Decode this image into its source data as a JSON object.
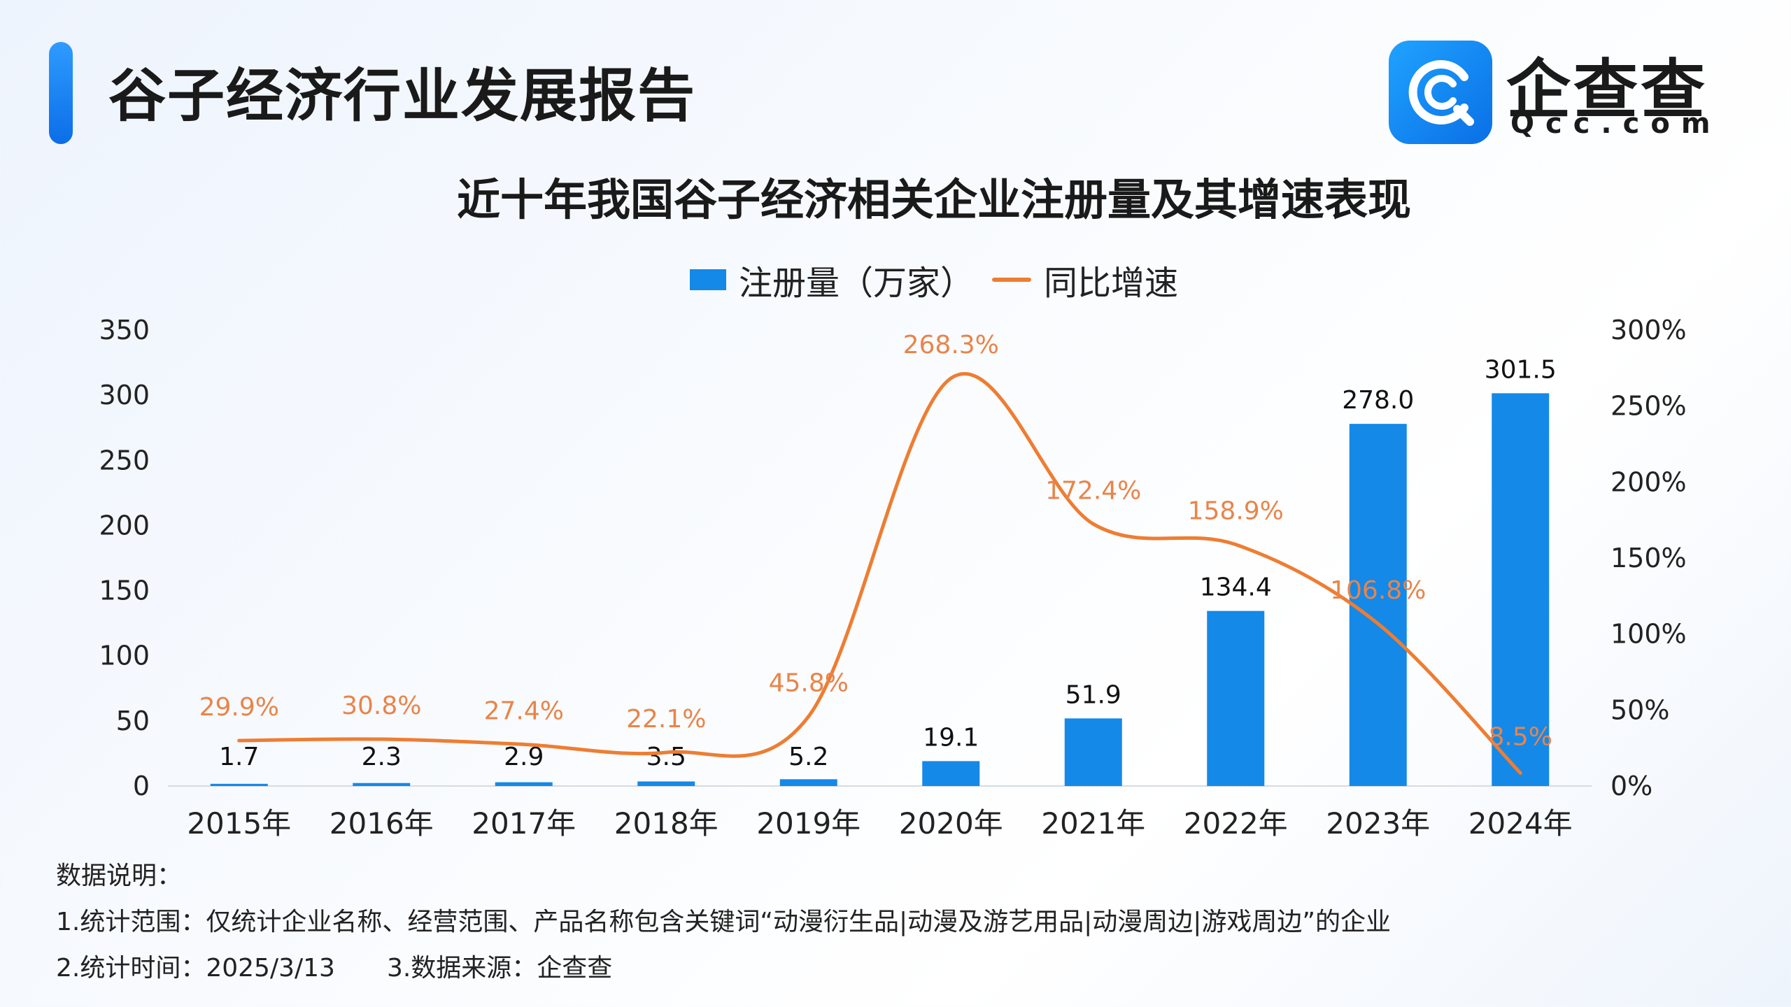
{
  "header": {
    "page_title": "谷子经济行业发展报告",
    "logo_name": "企查查",
    "logo_domain": "Qcc.com"
  },
  "colors": {
    "accent": "#1489e8",
    "bar": "#1489e8",
    "line": "#ee7d32",
    "line_label": "#e9844a"
  },
  "chart_data": {
    "type": "bar",
    "title": "近十年我国谷子经济相关企业注册量及其增速表现",
    "categories": [
      "2015年",
      "2016年",
      "2017年",
      "2018年",
      "2019年",
      "2020年",
      "2021年",
      "2022年",
      "2023年",
      "2024年"
    ],
    "series": [
      {
        "name": "注册量（万家）",
        "type": "bar",
        "axis": "left",
        "values": [
          1.7,
          2.3,
          2.9,
          3.5,
          5.2,
          19.1,
          51.9,
          134.4,
          278.0,
          301.5
        ],
        "labels": [
          "1.7",
          "2.3",
          "2.9",
          "3.5",
          "5.2",
          "19.1",
          "51.9",
          "134.4",
          "278.0",
          "301.5"
        ]
      },
      {
        "name": "同比增速",
        "type": "line",
        "axis": "right",
        "values": [
          29.9,
          30.8,
          27.4,
          22.1,
          45.8,
          268.3,
          172.4,
          158.9,
          106.8,
          8.5
        ],
        "labels": [
          "29.9%",
          "30.8%",
          "27.4%",
          "22.1%",
          "45.8%",
          "268.3%",
          "172.4%",
          "158.9%",
          "106.8%",
          "8.5%"
        ]
      }
    ],
    "y_left": {
      "range": [
        0,
        350
      ],
      "ticks": [
        "0",
        "50",
        "100",
        "150",
        "200",
        "250",
        "300",
        "350"
      ]
    },
    "y_right": {
      "range": [
        0,
        300
      ],
      "ticks": [
        "0%",
        "50%",
        "100%",
        "150%",
        "200%",
        "250%",
        "300%"
      ]
    },
    "legend_position": "top-center",
    "grid": false
  },
  "notes": {
    "heading": "数据说明：",
    "line1": "1.统计范围：仅统计企业名称、经营范围、产品名称包含关键词“动漫衍生品|动漫及游艺用品|动漫周边|游戏周边”的企业",
    "line2a": "2.统计时间：2025/3/13",
    "line2b": "3.数据来源：企查查"
  }
}
